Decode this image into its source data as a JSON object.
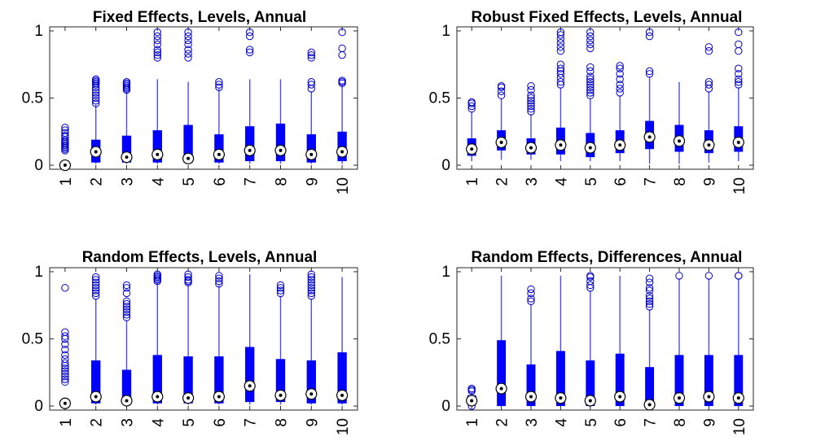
{
  "colors": {
    "box": "#0000FF",
    "whisker": "#4C4CFF",
    "outlier": "#0000CC",
    "median_fill": "#FFFFFF",
    "median_dot": "#000000",
    "axis": "#262626"
  },
  "chart_data": [
    {
      "type": "box",
      "title": "Fixed Effects, Levels, Annual",
      "categories": [
        "1",
        "2",
        "3",
        "4",
        "5",
        "6",
        "7",
        "8",
        "9",
        "10"
      ],
      "yticks": [
        {
          "value": 0,
          "label": "0"
        },
        {
          "value": 0.5,
          "label": "0.5"
        },
        {
          "value": 1,
          "label": "1"
        }
      ],
      "ylim": [
        -0.03,
        1.03
      ],
      "boxes": [
        {
          "whislo": 0.0,
          "q1": 0.0,
          "med": 0.0,
          "q3": 0.0,
          "whishi": 0.0,
          "fliers": [
            0.28,
            0.26,
            0.24,
            0.22,
            0.21,
            0.19,
            0.18,
            0.17,
            0.16,
            0.15,
            0.14,
            0.13,
            0.12,
            0.11,
            0.0
          ]
        },
        {
          "whislo": 0.01,
          "q1": 0.02,
          "med": 0.1,
          "q3": 0.19,
          "whishi": 0.45,
          "fliers": [
            0.46,
            0.48,
            0.5,
            0.52,
            0.54,
            0.56,
            0.58,
            0.6,
            0.61,
            0.62,
            0.63,
            0.64
          ]
        },
        {
          "whislo": 0.01,
          "q1": 0.02,
          "med": 0.06,
          "q3": 0.22,
          "whishi": 0.55,
          "fliers": [
            0.56,
            0.57,
            0.58,
            0.59,
            0.6,
            0.61,
            0.62
          ]
        },
        {
          "whislo": 0.01,
          "q1": 0.02,
          "med": 0.08,
          "q3": 0.26,
          "whishi": 0.64,
          "fliers": [
            0.8,
            0.82,
            0.84,
            0.86,
            0.9,
            0.93,
            0.96,
            0.99
          ]
        },
        {
          "whislo": 0.01,
          "q1": 0.02,
          "med": 0.05,
          "q3": 0.3,
          "whishi": 0.62,
          "fliers": [
            0.8,
            0.83,
            0.86,
            0.9,
            0.93,
            0.96,
            0.99
          ]
        },
        {
          "whislo": 0.01,
          "q1": 0.02,
          "med": 0.08,
          "q3": 0.23,
          "whishi": 0.57,
          "fliers": [
            0.58,
            0.6,
            0.62
          ]
        },
        {
          "whislo": 0.01,
          "q1": 0.03,
          "med": 0.11,
          "q3": 0.29,
          "whishi": 0.64,
          "fliers": [
            0.84,
            0.86,
            0.96,
            0.99
          ]
        },
        {
          "whislo": 0.01,
          "q1": 0.03,
          "med": 0.11,
          "q3": 0.31,
          "whishi": 0.64,
          "fliers": []
        },
        {
          "whislo": 0.01,
          "q1": 0.02,
          "med": 0.08,
          "q3": 0.23,
          "whishi": 0.55,
          "fliers": [
            0.57,
            0.6,
            0.62,
            0.8,
            0.82,
            0.84
          ]
        },
        {
          "whislo": 0.01,
          "q1": 0.03,
          "med": 0.1,
          "q3": 0.25,
          "whishi": 0.6,
          "fliers": [
            0.61,
            0.62,
            0.63,
            0.82,
            0.87,
            0.99
          ]
        }
      ]
    },
    {
      "type": "box",
      "title": "Robust Fixed Effects, Levels, Annual",
      "categories": [
        "1",
        "2",
        "3",
        "4",
        "5",
        "6",
        "7",
        "8",
        "9",
        "10"
      ],
      "yticks": [
        {
          "value": 0,
          "label": "0"
        },
        {
          "value": 0.5,
          "label": "0.5"
        },
        {
          "value": 1,
          "label": "1"
        }
      ],
      "ylim": [
        -0.03,
        1.03
      ],
      "boxes": [
        {
          "whislo": 0.03,
          "q1": 0.07,
          "med": 0.12,
          "q3": 0.2,
          "whishi": 0.4,
          "fliers": [
            0.42,
            0.44,
            0.46,
            0.47
          ]
        },
        {
          "whislo": 0.04,
          "q1": 0.11,
          "med": 0.17,
          "q3": 0.26,
          "whishi": 0.5,
          "fliers": [
            0.52,
            0.55,
            0.58,
            0.59
          ]
        },
        {
          "whislo": 0.04,
          "q1": 0.08,
          "med": 0.13,
          "q3": 0.2,
          "whishi": 0.38,
          "fliers": [
            0.4,
            0.42,
            0.44,
            0.46,
            0.48,
            0.5,
            0.52,
            0.56,
            0.59
          ]
        },
        {
          "whislo": 0.03,
          "q1": 0.08,
          "med": 0.15,
          "q3": 0.28,
          "whishi": 0.58,
          "fliers": [
            0.6,
            0.62,
            0.65,
            0.68,
            0.7,
            0.72,
            0.75,
            0.85,
            0.88,
            0.91,
            0.94,
            0.97,
            0.99
          ]
        },
        {
          "whislo": 0.03,
          "q1": 0.06,
          "med": 0.13,
          "q3": 0.24,
          "whishi": 0.5,
          "fliers": [
            0.52,
            0.54,
            0.56,
            0.58,
            0.6,
            0.62,
            0.64,
            0.66,
            0.7,
            0.73,
            0.87,
            0.9,
            0.93,
            0.96,
            0.99
          ]
        },
        {
          "whislo": 0.03,
          "q1": 0.09,
          "med": 0.15,
          "q3": 0.26,
          "whishi": 0.52,
          "fliers": [
            0.54,
            0.57,
            0.6,
            0.64,
            0.68,
            0.72,
            0.74
          ]
        },
        {
          "whislo": 0.01,
          "q1": 0.12,
          "med": 0.21,
          "q3": 0.33,
          "whishi": 0.66,
          "fliers": [
            0.68,
            0.7,
            0.96,
            0.99
          ]
        },
        {
          "whislo": 0.01,
          "q1": 0.1,
          "med": 0.18,
          "q3": 0.3,
          "whishi": 0.62,
          "fliers": []
        },
        {
          "whislo": 0.02,
          "q1": 0.09,
          "med": 0.15,
          "q3": 0.26,
          "whishi": 0.55,
          "fliers": [
            0.57,
            0.6,
            0.62,
            0.85,
            0.88
          ]
        },
        {
          "whislo": 0.03,
          "q1": 0.1,
          "med": 0.17,
          "q3": 0.29,
          "whishi": 0.58,
          "fliers": [
            0.6,
            0.62,
            0.64,
            0.68,
            0.72,
            0.85,
            0.9,
            0.99
          ]
        }
      ]
    },
    {
      "type": "box",
      "title": "Random Effects, Levels, Annual",
      "categories": [
        "1",
        "2",
        "3",
        "4",
        "5",
        "6",
        "7",
        "8",
        "9",
        "10"
      ],
      "yticks": [
        {
          "value": 0,
          "label": "0"
        },
        {
          "value": 0.5,
          "label": "0.5"
        },
        {
          "value": 1,
          "label": "1"
        }
      ],
      "ylim": [
        -0.03,
        1.03
      ],
      "boxes": [
        {
          "whislo": 0.02,
          "q1": 0.02,
          "med": 0.02,
          "q3": 0.02,
          "whishi": 0.02,
          "fliers": [
            0.88,
            0.55,
            0.52,
            0.5,
            0.46,
            0.42,
            0.38,
            0.35,
            0.32,
            0.3,
            0.28,
            0.26,
            0.24,
            0.22,
            0.2,
            0.18,
            0.02
          ]
        },
        {
          "whislo": 0.01,
          "q1": 0.02,
          "med": 0.07,
          "q3": 0.34,
          "whishi": 0.8,
          "fliers": [
            0.82,
            0.84,
            0.86,
            0.88,
            0.9,
            0.92,
            0.94,
            0.96
          ]
        },
        {
          "whislo": 0.01,
          "q1": 0.02,
          "med": 0.04,
          "q3": 0.27,
          "whishi": 0.64,
          "fliers": [
            0.66,
            0.68,
            0.7,
            0.72,
            0.74,
            0.76,
            0.78,
            0.84,
            0.88,
            0.9
          ]
        },
        {
          "whislo": 0.01,
          "q1": 0.02,
          "med": 0.07,
          "q3": 0.38,
          "whishi": 0.92,
          "fliers": [
            0.93,
            0.94,
            0.95,
            0.96,
            0.97,
            0.98
          ]
        },
        {
          "whislo": 0.01,
          "q1": 0.02,
          "med": 0.06,
          "q3": 0.37,
          "whishi": 0.9,
          "fliers": [
            0.92,
            0.93,
            0.94,
            0.96,
            0.98
          ]
        },
        {
          "whislo": 0.01,
          "q1": 0.02,
          "med": 0.07,
          "q3": 0.37,
          "whishi": 0.9,
          "fliers": [
            0.91,
            0.93,
            0.95,
            0.97
          ]
        },
        {
          "whislo": 0.01,
          "q1": 0.03,
          "med": 0.15,
          "q3": 0.44,
          "whishi": 0.98,
          "fliers": []
        },
        {
          "whislo": 0.01,
          "q1": 0.03,
          "med": 0.08,
          "q3": 0.35,
          "whishi": 0.82,
          "fliers": [
            0.84,
            0.86,
            0.88,
            0.9
          ]
        },
        {
          "whislo": 0.01,
          "q1": 0.02,
          "med": 0.09,
          "q3": 0.34,
          "whishi": 0.8,
          "fliers": [
            0.82,
            0.84,
            0.86,
            0.88,
            0.9,
            0.92,
            0.94,
            0.96,
            0.98
          ]
        },
        {
          "whislo": 0.01,
          "q1": 0.02,
          "med": 0.08,
          "q3": 0.4,
          "whishi": 0.96,
          "fliers": []
        }
      ]
    },
    {
      "type": "box",
      "title": "Random Effects, Differences, Annual",
      "categories": [
        "1",
        "2",
        "3",
        "4",
        "5",
        "6",
        "7",
        "8",
        "9",
        "10"
      ],
      "yticks": [
        {
          "value": 0,
          "label": "0"
        },
        {
          "value": 0.5,
          "label": "0.5"
        },
        {
          "value": 1,
          "label": "1"
        }
      ],
      "ylim": [
        -0.03,
        1.03
      ],
      "boxes": [
        {
          "whislo": 0.0,
          "q1": 0.01,
          "med": 0.04,
          "q3": 0.08,
          "whishi": 0.1,
          "fliers": [
            0.11,
            0.12,
            0.13,
            0.0
          ]
        },
        {
          "whislo": 0.0,
          "q1": 0.0,
          "med": 0.13,
          "q3": 0.49,
          "whishi": 0.97,
          "fliers": []
        },
        {
          "whislo": 0.0,
          "q1": 0.0,
          "med": 0.07,
          "q3": 0.31,
          "whishi": 0.76,
          "fliers": [
            0.78,
            0.8,
            0.84,
            0.87
          ]
        },
        {
          "whislo": 0.0,
          "q1": 0.0,
          "med": 0.06,
          "q3": 0.41,
          "whishi": 0.97,
          "fliers": []
        },
        {
          "whislo": 0.0,
          "q1": 0.0,
          "med": 0.04,
          "q3": 0.34,
          "whishi": 0.86,
          "fliers": [
            0.88,
            0.9,
            0.93,
            0.96,
            0.97
          ]
        },
        {
          "whislo": 0.0,
          "q1": 0.0,
          "med": 0.07,
          "q3": 0.39,
          "whishi": 0.97,
          "fliers": []
        },
        {
          "whislo": 0.0,
          "q1": 0.0,
          "med": 0.01,
          "q3": 0.29,
          "whishi": 0.72,
          "fliers": [
            0.74,
            0.76,
            0.78,
            0.8,
            0.82,
            0.86,
            0.88,
            0.92,
            0.95
          ]
        },
        {
          "whislo": 0.0,
          "q1": 0.0,
          "med": 0.06,
          "q3": 0.38,
          "whishi": 0.95,
          "fliers": [
            0.97
          ]
        },
        {
          "whislo": 0.0,
          "q1": 0.0,
          "med": 0.07,
          "q3": 0.38,
          "whishi": 0.95,
          "fliers": [
            0.97
          ]
        },
        {
          "whislo": 0.0,
          "q1": 0.0,
          "med": 0.06,
          "q3": 0.38,
          "whishi": 0.95,
          "fliers": [
            0.97,
            0.97
          ]
        }
      ]
    }
  ]
}
